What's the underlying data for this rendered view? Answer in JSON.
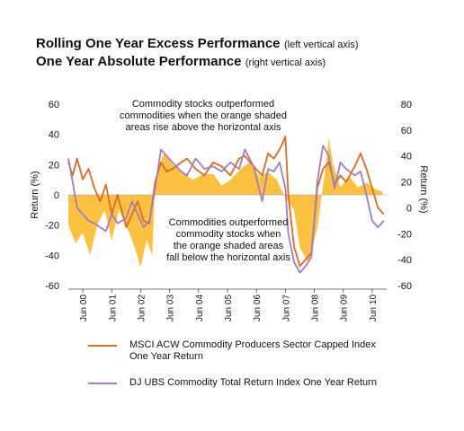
{
  "titles": {
    "line1": "Rolling One Year Excess Performance",
    "line1_note": "(left vertical axis)",
    "line2": "One Year Absolute Performance",
    "line2_note": "(right vertical axis)"
  },
  "annotations": {
    "top": [
      "Commodity stocks outperformed",
      "commodities when the orange shaded",
      "areas rise above the horizontal axis"
    ],
    "bottom": [
      "Commodities outperformed",
      "commodity stocks when",
      "the orange shaded areas",
      "fall below the horizontal axis"
    ]
  },
  "legend": [
    {
      "label_line1": "MSCI ACW Commodity Producers Sector Capped Index",
      "label_line2": "One Year Return",
      "color": "#e06a1e"
    },
    {
      "label_line1": "DJ UBS Commodity Total Return Index One Year Return",
      "label_line2": "",
      "color": "#a37cc4"
    }
  ],
  "chart_data": {
    "type": "line",
    "left_axis": {
      "label": "Return (%)",
      "ylim": [
        -60,
        60
      ],
      "ticks": [
        -60,
        -40,
        -20,
        0,
        20,
        40,
        60
      ]
    },
    "right_axis": {
      "label": "Return (%)",
      "ylim": [
        -60,
        80
      ],
      "ticks": [
        -60,
        -40,
        -20,
        0,
        20,
        40,
        60,
        80
      ]
    },
    "x_ticks": [
      "Jun 00",
      "Jun 01",
      "Jun 02",
      "Jun 03",
      "Jun 04",
      "Jun 05",
      "Jun 06",
      "Jun 07",
      "Jun 08",
      "Jun 09",
      "Jun 10"
    ],
    "x_range": [
      2000.0,
      2011.0
    ],
    "excess_area": {
      "axis": "left",
      "color": "#fcc23f",
      "points": [
        [
          2000.0,
          -20
        ],
        [
          2000.25,
          -32
        ],
        [
          2000.5,
          -25
        ],
        [
          2000.75,
          -40
        ],
        [
          2001.0,
          -20
        ],
        [
          2001.25,
          -10
        ],
        [
          2001.5,
          -30
        ],
        [
          2001.75,
          -10
        ],
        [
          2002.0,
          -20
        ],
        [
          2002.3,
          -35
        ],
        [
          2002.5,
          -48
        ],
        [
          2002.7,
          -30
        ],
        [
          2002.9,
          -40
        ],
        [
          2003.0,
          10
        ],
        [
          2003.3,
          28
        ],
        [
          2003.6,
          20
        ],
        [
          2004.0,
          14
        ],
        [
          2004.3,
          10
        ],
        [
          2004.6,
          13
        ],
        [
          2005.0,
          14
        ],
        [
          2005.3,
          6
        ],
        [
          2005.6,
          10
        ],
        [
          2006.0,
          18
        ],
        [
          2006.3,
          22
        ],
        [
          2006.6,
          12
        ],
        [
          2006.9,
          15
        ],
        [
          2007.2,
          10
        ],
        [
          2007.5,
          -2
        ],
        [
          2007.8,
          -10
        ],
        [
          2008.0,
          -35
        ],
        [
          2008.3,
          -45
        ],
        [
          2008.6,
          -22
        ],
        [
          2008.9,
          20
        ],
        [
          2009.0,
          38
        ],
        [
          2009.15,
          20
        ],
        [
          2009.4,
          5
        ],
        [
          2009.7,
          12
        ],
        [
          2010.0,
          5
        ],
        [
          2010.3,
          8
        ],
        [
          2010.6,
          4
        ],
        [
          2010.85,
          2
        ]
      ]
    },
    "series": [
      {
        "name": "MSCI ACW Commodity Producers Sector Capped Index One Year Return",
        "axis": "right",
        "color": "#e06a1e",
        "points": [
          [
            2000.0,
            35
          ],
          [
            2000.15,
            25
          ],
          [
            2000.3,
            38
          ],
          [
            2000.5,
            22
          ],
          [
            2000.7,
            30
          ],
          [
            2000.9,
            15
          ],
          [
            2001.1,
            5
          ],
          [
            2001.3,
            18
          ],
          [
            2001.5,
            -5
          ],
          [
            2001.7,
            10
          ],
          [
            2002.0,
            -15
          ],
          [
            2002.2,
            -5
          ],
          [
            2002.4,
            5
          ],
          [
            2002.6,
            -10
          ],
          [
            2002.8,
            -12
          ],
          [
            2003.0,
            20
          ],
          [
            2003.2,
            35
          ],
          [
            2003.4,
            28
          ],
          [
            2003.6,
            30
          ],
          [
            2003.9,
            35
          ],
          [
            2004.1,
            38
          ],
          [
            2004.4,
            30
          ],
          [
            2004.7,
            25
          ],
          [
            2005.0,
            35
          ],
          [
            2005.3,
            32
          ],
          [
            2005.6,
            25
          ],
          [
            2005.9,
            38
          ],
          [
            2006.1,
            40
          ],
          [
            2006.4,
            32
          ],
          [
            2006.7,
            25
          ],
          [
            2006.9,
            42
          ],
          [
            2007.1,
            38
          ],
          [
            2007.3,
            45
          ],
          [
            2007.5,
            55
          ],
          [
            2007.6,
            10
          ],
          [
            2007.8,
            -30
          ],
          [
            2008.0,
            -45
          ],
          [
            2008.2,
            -40
          ],
          [
            2008.4,
            -35
          ],
          [
            2008.6,
            15
          ],
          [
            2008.8,
            30
          ],
          [
            2009.0,
            35
          ],
          [
            2009.2,
            18
          ],
          [
            2009.4,
            25
          ],
          [
            2009.6,
            20
          ],
          [
            2009.9,
            32
          ],
          [
            2010.1,
            42
          ],
          [
            2010.3,
            30
          ],
          [
            2010.5,
            15
          ],
          [
            2010.7,
            0
          ],
          [
            2010.9,
            -5
          ]
        ]
      },
      {
        "name": "DJ UBS Commodity Total Return Index One Year Return",
        "axis": "right",
        "color": "#a37cc4",
        "points": [
          [
            2000.0,
            38
          ],
          [
            2000.15,
            20
          ],
          [
            2000.3,
            0
          ],
          [
            2000.5,
            -5
          ],
          [
            2000.7,
            -10
          ],
          [
            2000.9,
            -12
          ],
          [
            2001.1,
            -15
          ],
          [
            2001.3,
            -18
          ],
          [
            2001.5,
            -5
          ],
          [
            2001.7,
            -12
          ],
          [
            2002.0,
            -8
          ],
          [
            2002.2,
            5
          ],
          [
            2002.4,
            -5
          ],
          [
            2002.6,
            -15
          ],
          [
            2002.8,
            -10
          ],
          [
            2003.0,
            15
          ],
          [
            2003.2,
            45
          ],
          [
            2003.4,
            40
          ],
          [
            2003.6,
            35
          ],
          [
            2003.9,
            28
          ],
          [
            2004.1,
            25
          ],
          [
            2004.4,
            38
          ],
          [
            2004.7,
            30
          ],
          [
            2005.0,
            32
          ],
          [
            2005.3,
            28
          ],
          [
            2005.6,
            35
          ],
          [
            2005.9,
            30
          ],
          [
            2006.1,
            45
          ],
          [
            2006.4,
            32
          ],
          [
            2006.7,
            5
          ],
          [
            2006.9,
            30
          ],
          [
            2007.1,
            28
          ],
          [
            2007.3,
            35
          ],
          [
            2007.5,
            15
          ],
          [
            2007.6,
            -20
          ],
          [
            2007.8,
            -42
          ],
          [
            2008.0,
            -50
          ],
          [
            2008.2,
            -45
          ],
          [
            2008.4,
            -38
          ],
          [
            2008.6,
            20
          ],
          [
            2008.8,
            48
          ],
          [
            2009.0,
            40
          ],
          [
            2009.2,
            15
          ],
          [
            2009.4,
            35
          ],
          [
            2009.6,
            30
          ],
          [
            2009.9,
            25
          ],
          [
            2010.1,
            28
          ],
          [
            2010.3,
            10
          ],
          [
            2010.5,
            -10
          ],
          [
            2010.7,
            -15
          ],
          [
            2010.9,
            -10
          ]
        ]
      }
    ]
  }
}
